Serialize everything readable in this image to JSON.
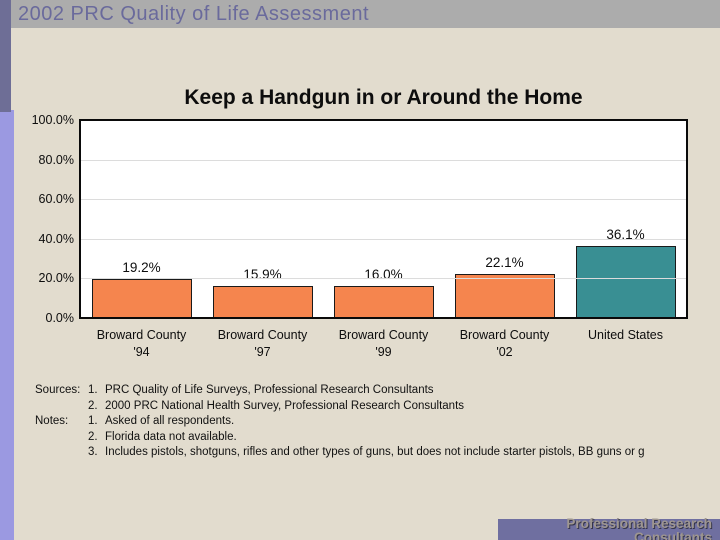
{
  "header": {
    "title": "2002 PRC Quality of Life Assessment"
  },
  "chart_data": {
    "type": "bar",
    "title": "Keep a Handgun in or Around the Home",
    "categories": [
      "Broward County '94",
      "Broward County '97",
      "Broward County '99",
      "Broward County '02",
      "United States"
    ],
    "values": [
      19.2,
      15.9,
      16.0,
      22.1,
      36.1
    ],
    "value_labels": [
      "19.2%",
      "15.9%",
      "16.0%",
      "22.1%",
      "36.1%"
    ],
    "bar_colors": [
      "#F5854E",
      "#F5854E",
      "#F5854E",
      "#F5854E",
      "#398F93"
    ],
    "ylim": [
      0,
      100
    ],
    "ytick_labels": [
      "100.0%",
      "80.0%",
      "60.0%",
      "40.0%",
      "20.0%",
      "0.0%"
    ],
    "grid": true,
    "legend_position": "none",
    "xlabel": "",
    "ylabel": ""
  },
  "annotations": {
    "rows": [
      {
        "label": "Sources:",
        "num": "1.",
        "text": "PRC Quality of Life Surveys, Professional Research Consultants"
      },
      {
        "label": "",
        "num": "2.",
        "text": "2000 PRC National Health Survey, Professional Research Consultants"
      },
      {
        "label": "Notes:",
        "num": "1.",
        "text": "Asked of all respondents."
      },
      {
        "label": "",
        "num": "2.",
        "text": "Florida data not available."
      },
      {
        "label": "",
        "num": "3.",
        "text": "Includes pistols, shotguns, rifles and other types of guns, but does not include starter pistols, BB guns or g"
      }
    ]
  },
  "footer": {
    "line1": "Professional Research",
    "line2": "Consultants"
  },
  "colors": {
    "body_background": "#E2DCCE",
    "header_bar": "#ACACAC",
    "header_text": "#6A6A9C",
    "left_strip_dark": "#6E6E96",
    "left_strip_light": "#9B99E1",
    "plot_background": "#FFFFFF",
    "plot_border": "#0A0A0A",
    "gridline": "#DCDCDC",
    "bar_orange": "#F5854E",
    "bar_teal": "#398F93",
    "footer_bar": "#6F6FA0",
    "footer_text": "#9E9690"
  }
}
